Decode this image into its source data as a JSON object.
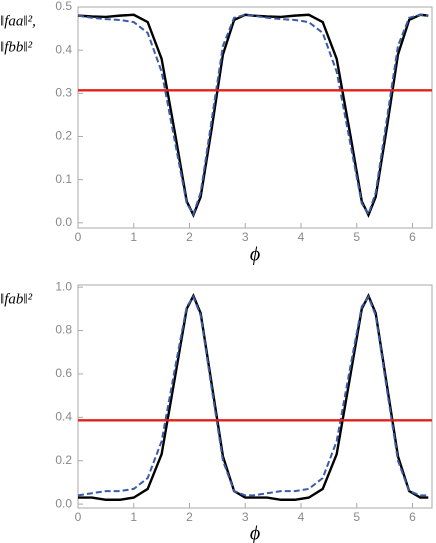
{
  "chart_data": [
    {
      "type": "line",
      "y_label": [
        "‖faa‖²,",
        "‖fbb‖²"
      ],
      "x_label": "ϕ",
      "xlim": [
        0,
        6.35
      ],
      "xticks": [
        0,
        1,
        2,
        3,
        4,
        5,
        6
      ],
      "ylim": [
        -0.012,
        0.5
      ],
      "yticks": [
        {
          "value": 0,
          "label": "0.0"
        },
        0.1,
        0.2,
        0.3,
        0.4,
        0.5
      ],
      "x": [
        0,
        0.25,
        0.5,
        0.75,
        1.0,
        1.25,
        1.5,
        1.75,
        1.95,
        2.07,
        2.2,
        2.4,
        2.6,
        2.8,
        3.0,
        3.14,
        3.39,
        3.64,
        3.89,
        4.14,
        4.39,
        4.64,
        4.89,
        5.09,
        5.21,
        5.34,
        5.54,
        5.74,
        5.94,
        6.14,
        6.283
      ],
      "series": [
        {
          "color": "#000000",
          "dash": false,
          "values": [
            0.48,
            0.478,
            0.477,
            0.48,
            0.482,
            0.465,
            0.38,
            0.2,
            0.05,
            0.018,
            0.06,
            0.22,
            0.39,
            0.47,
            0.482,
            0.48,
            0.478,
            0.477,
            0.48,
            0.482,
            0.465,
            0.38,
            0.2,
            0.05,
            0.018,
            0.06,
            0.22,
            0.39,
            0.47,
            0.482,
            0.48
          ]
        },
        {
          "color": "#3a5ba8",
          "dash": true,
          "values": [
            0.48,
            0.475,
            0.472,
            0.47,
            0.465,
            0.44,
            0.35,
            0.18,
            0.045,
            0.02,
            0.07,
            0.24,
            0.41,
            0.475,
            0.482,
            0.48,
            0.475,
            0.472,
            0.47,
            0.465,
            0.44,
            0.35,
            0.18,
            0.045,
            0.02,
            0.07,
            0.24,
            0.41,
            0.475,
            0.482,
            0.48
          ]
        },
        {
          "color": "#e0201b",
          "dash": false,
          "x": [
            0,
            6.35
          ],
          "values": [
            0.307,
            0.307
          ]
        }
      ]
    },
    {
      "type": "line",
      "y_label": [
        "‖fab‖²"
      ],
      "x_label": "ϕ",
      "xlim": [
        0,
        6.35
      ],
      "xticks": [
        0,
        1,
        2,
        3,
        4,
        5,
        6
      ],
      "ylim": [
        -0.018,
        1.01
      ],
      "yticks": [
        {
          "value": 0,
          "label": "0.0"
        },
        0.2,
        0.4,
        0.6,
        0.8,
        {
          "value": 1,
          "label": "1.0"
        }
      ],
      "x": [
        0,
        0.25,
        0.5,
        0.75,
        1.0,
        1.25,
        1.5,
        1.75,
        1.95,
        2.07,
        2.2,
        2.4,
        2.6,
        2.8,
        3.0,
        3.14,
        3.39,
        3.64,
        3.89,
        4.14,
        4.39,
        4.64,
        4.89,
        5.09,
        5.21,
        5.34,
        5.54,
        5.74,
        5.94,
        6.14,
        6.283
      ],
      "series": [
        {
          "color": "#000000",
          "dash": false,
          "values": [
            0.03,
            0.03,
            0.02,
            0.02,
            0.03,
            0.07,
            0.23,
            0.6,
            0.9,
            0.96,
            0.88,
            0.55,
            0.22,
            0.06,
            0.03,
            0.03,
            0.03,
            0.02,
            0.02,
            0.03,
            0.07,
            0.23,
            0.6,
            0.9,
            0.96,
            0.88,
            0.55,
            0.22,
            0.06,
            0.03,
            0.03
          ]
        },
        {
          "color": "#3a5ba8",
          "dash": true,
          "values": [
            0.04,
            0.05,
            0.06,
            0.06,
            0.07,
            0.12,
            0.29,
            0.64,
            0.91,
            0.955,
            0.87,
            0.53,
            0.2,
            0.06,
            0.04,
            0.04,
            0.05,
            0.06,
            0.06,
            0.07,
            0.12,
            0.29,
            0.64,
            0.91,
            0.955,
            0.87,
            0.53,
            0.2,
            0.06,
            0.04,
            0.04
          ]
        },
        {
          "color": "#e0201b",
          "dash": false,
          "x": [
            0,
            6.35
          ],
          "values": [
            0.386,
            0.386
          ]
        }
      ]
    }
  ]
}
